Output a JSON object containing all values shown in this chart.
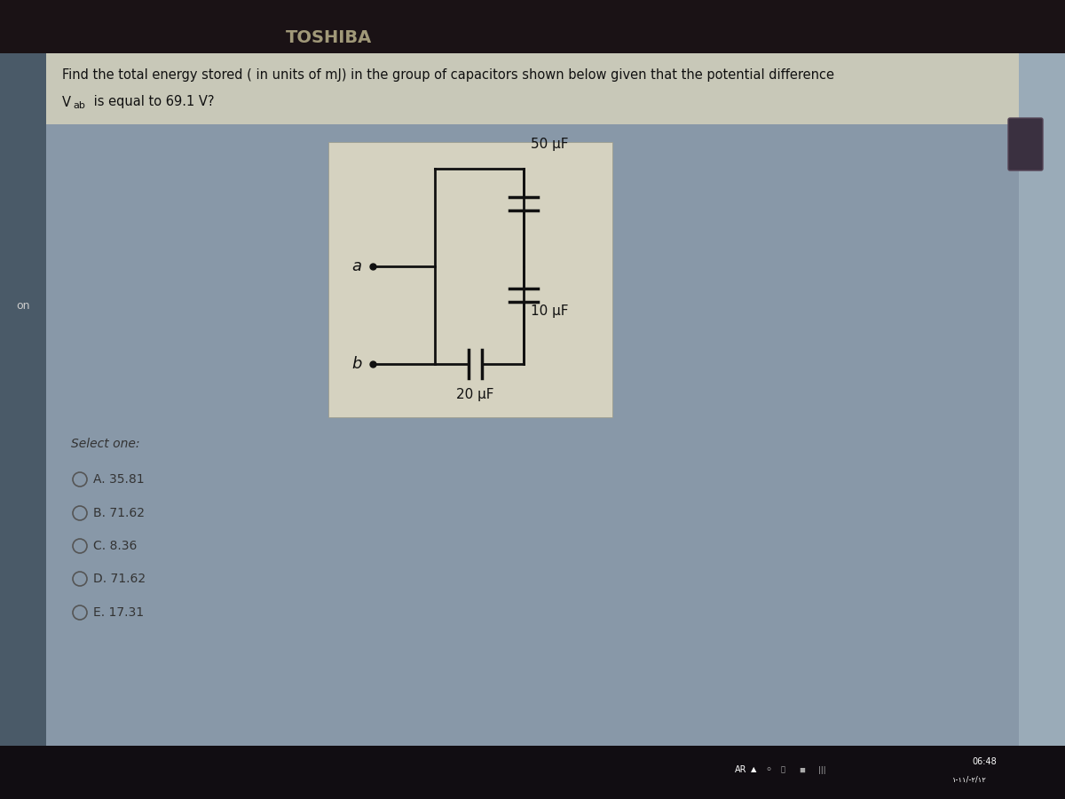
{
  "title_line1": "Find the total energy stored ( in units of mJ) in the group of capacitors shown below given that the potential difference",
  "title_line2": "V",
  "title_line2_sub": "ab",
  "title_line2_rest": " is equal to 69.1 V?",
  "cap1_label": "50 μF",
  "cap2_label": "10 μF",
  "cap3_label": "20 μF",
  "node_a_label": "a",
  "node_b_label": "b",
  "select_one_label": "Select one:",
  "options": [
    "A. 35.81",
    "B. 71.62",
    "C. 8.36",
    "D. 71.62",
    "E. 17.31"
  ],
  "screen_bg": "#8090a0",
  "content_bg": "#8898a8",
  "left_sidebar_bg": "#5a6a78",
  "right_sidebar_bg": "#90a0b0",
  "circuit_box_bg": "#d8d5c5",
  "laptop_body_bg": "#1a1215",
  "taskbar_bg": "#1a1520",
  "toshiba_color": "#b0a888",
  "time_color": "#ffffff",
  "text_dark": "#1a1a1a",
  "text_gray": "#444444",
  "circuit_line_color": "#111111",
  "on_text_color": "#cccccc"
}
